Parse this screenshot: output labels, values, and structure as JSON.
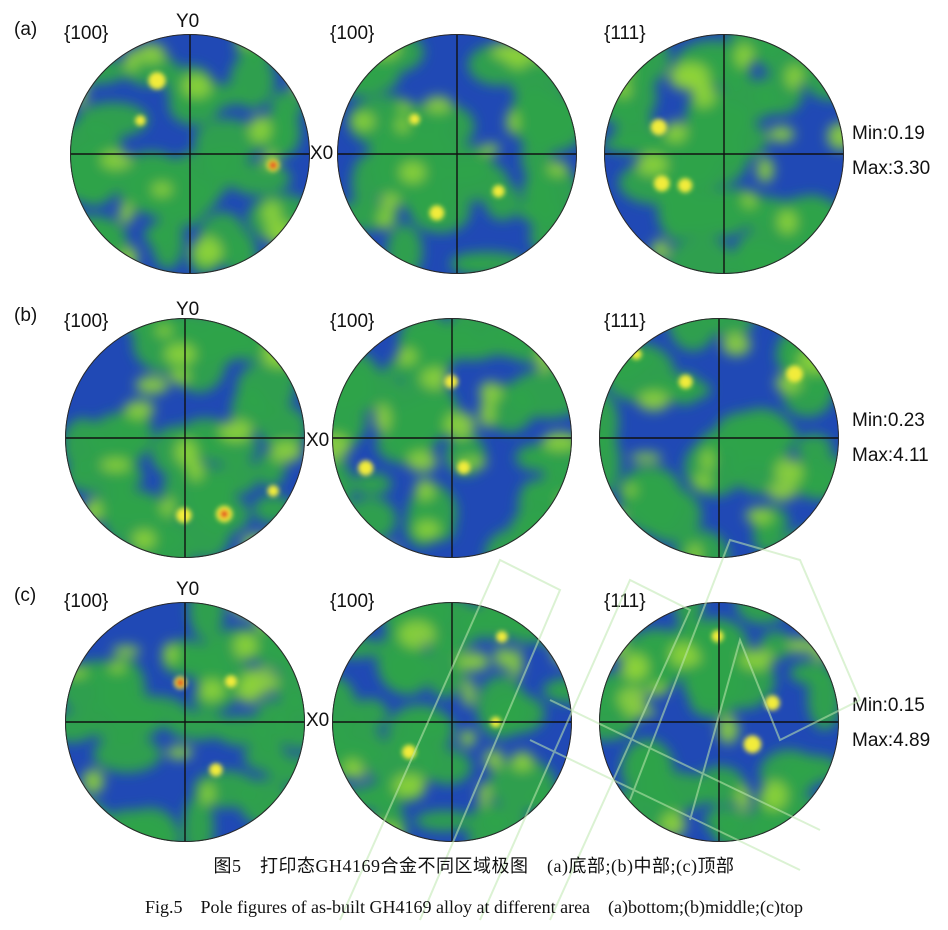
{
  "figure": {
    "rows": [
      {
        "tag": "(a)",
        "panels": [
          {
            "plane": "{100}",
            "y_axis": "Y0",
            "x_axis": "X0"
          },
          {
            "plane": "{100}"
          },
          {
            "plane": "{111}"
          }
        ],
        "min_label": "Min:0.19",
        "max_label": "Max:3.30"
      },
      {
        "tag": "(b)",
        "panels": [
          {
            "plane": "{100}",
            "y_axis": "Y0",
            "x_axis": "X0"
          },
          {
            "plane": "{100}"
          },
          {
            "plane": "{111}"
          }
        ],
        "min_label": "Min:0.23",
        "max_label": "Max:4.11"
      },
      {
        "tag": "(c)",
        "panels": [
          {
            "plane": "{100}",
            "y_axis": "Y0",
            "x_axis": "X0"
          },
          {
            "plane": "{100}"
          },
          {
            "plane": "{111}"
          }
        ],
        "min_label": "Min:0.15",
        "max_label": "Max:4.89"
      }
    ],
    "caption_cn": "图5　打印态GH4169合金不同区域极图　(a)底部;(b)中部;(c)顶部",
    "caption_en": "Fig.5　Pole figures of as-built GH4169 alloy at different area　(a)bottom;(b)middle;(c)top"
  },
  "colors": {
    "low": "#2049b5",
    "mid": "#2fa34a",
    "green_light": "#8fd43a",
    "yellow": "#f2ec3a",
    "high": "#e2241c",
    "axis_line": "#111111",
    "watermark": "#bfe8b0"
  }
}
